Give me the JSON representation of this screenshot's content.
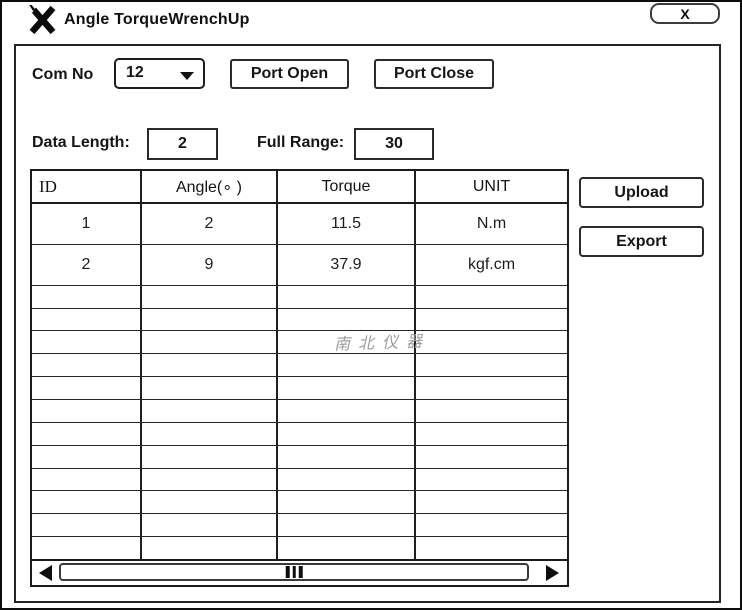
{
  "window": {
    "title": "Angle TorqueWrenchUp",
    "close_label": "X"
  },
  "icons": {
    "titlebar_icon": "crossed-tools",
    "dropdown_caret": "▼",
    "scroll_left_arrow": "◀",
    "scroll_right_arrow": "▶",
    "scroll_thumb_grip": "|||"
  },
  "toolbar": {
    "com_no_label": "Com No",
    "com_no_value": "12",
    "port_open_label": "Port Open",
    "port_close_label": "Port Close"
  },
  "settings": {
    "data_length_label": "Data Length:",
    "data_length_value": "2",
    "full_range_label": "Full Range:",
    "full_range_value": "30"
  },
  "table": {
    "headers": [
      "ID",
      "Angle(∘ )",
      "Torque",
      "UNIT"
    ],
    "rows": [
      [
        "1",
        "2",
        "11.5",
        "N.m"
      ],
      [
        "2",
        "9",
        "37.9",
        "kgf.cm"
      ]
    ],
    "empty_row_count": 12,
    "watermark": "南北仪器"
  },
  "actions": {
    "upload_label": "Upload",
    "export_label": "Export"
  },
  "colors": {
    "line": "#1c1c1c",
    "watermark": "#9d9d9d",
    "background": "#ffffff"
  }
}
